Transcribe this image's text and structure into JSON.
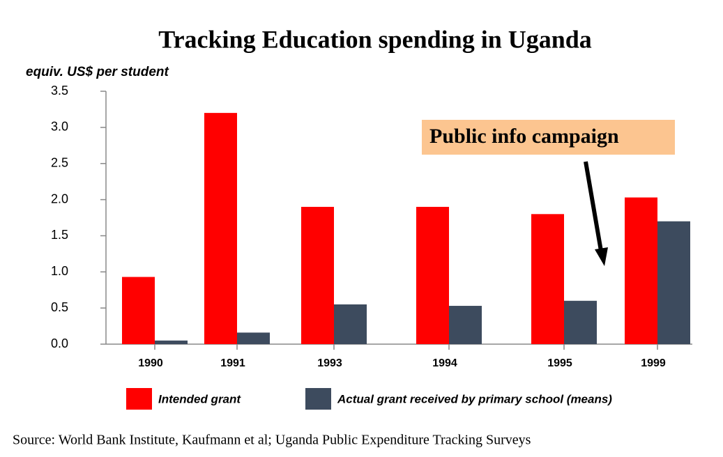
{
  "chart_data": {
    "type": "bar",
    "title": "Tracking Education spending in Uganda",
    "y_label": "equiv. US$ per student",
    "categories": [
      "1990",
      "1991",
      "1993",
      "1994",
      "1995",
      "1999"
    ],
    "series": [
      {
        "name": "Intended grant",
        "color": "#ff0000",
        "values": [
          0.93,
          3.2,
          1.9,
          1.9,
          1.8,
          2.03
        ]
      },
      {
        "name": "Actual grant received by primary school (means)",
        "color": "#3d4b5e",
        "values": [
          0.05,
          0.16,
          0.55,
          0.53,
          0.6,
          1.7
        ]
      }
    ],
    "ylim": [
      0,
      3.5
    ],
    "yticks": [
      {
        "value": 0,
        "label": "0.0"
      },
      0.5,
      {
        "value": 1,
        "label": "1.0"
      },
      1.5,
      {
        "value": 2,
        "label": "2.0"
      },
      2.5,
      {
        "value": 3,
        "label": "3.0"
      },
      3.5
    ],
    "grid": false,
    "annotation": "Public info campaign",
    "source": "Source: World Bank Institute, Kaufmann et al; Uganda Public Expenditure Tracking Surveys"
  }
}
